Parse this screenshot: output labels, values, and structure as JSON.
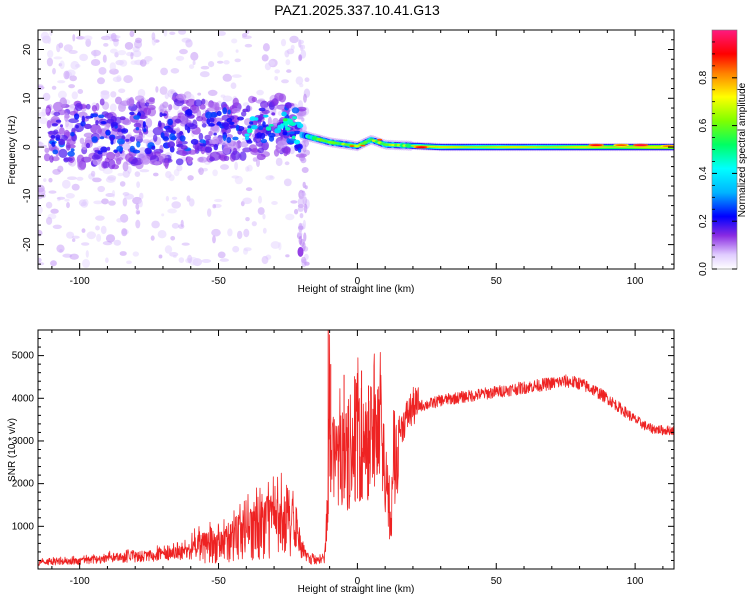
{
  "title": "PAZ1.2025.337.10.41.G13",
  "chart_data": [
    {
      "type": "heatmap",
      "name": "spectrogram",
      "xlabel": "Height of straight line (km)",
      "ylabel": "Frequency (Hz)",
      "xlim": [
        -115,
        114
      ],
      "ylim": [
        -25,
        24
      ],
      "xticks": [
        -100,
        -50,
        0,
        50,
        100
      ],
      "yticks": [
        -20,
        -10,
        0,
        10,
        20
      ],
      "xtick_labels": [
        "-100",
        "-50",
        "0",
        "50",
        "100"
      ],
      "ytick_labels": [
        "-20",
        "-10",
        "0",
        "10",
        "20"
      ],
      "colorbar": {
        "label": "Normalized spectral amplitude",
        "range": [
          0,
          1
        ],
        "ticks": [
          0.0,
          0.2,
          0.4,
          0.6,
          0.8
        ],
        "tick_labels": [
          "0.0",
          "0.2",
          "0.4",
          "0.6",
          "0.8"
        ],
        "stops": [
          {
            "v": 0.0,
            "color": "#ffffff"
          },
          {
            "v": 0.06,
            "color": "#e0ccff"
          },
          {
            "v": 0.14,
            "color": "#8a2be2"
          },
          {
            "v": 0.22,
            "color": "#0000ff"
          },
          {
            "v": 0.32,
            "color": "#00b4ff"
          },
          {
            "v": 0.42,
            "color": "#00ffff"
          },
          {
            "v": 0.52,
            "color": "#00ff64"
          },
          {
            "v": 0.62,
            "color": "#80ff00"
          },
          {
            "v": 0.72,
            "color": "#ffff00"
          },
          {
            "v": 0.82,
            "color": "#ff8000"
          },
          {
            "v": 0.9,
            "color": "#ff0000"
          },
          {
            "v": 1.0,
            "color": "#ff1a80"
          }
        ]
      },
      "ridge_frequency_hz": [
        {
          "x": -110,
          "f": 2.5
        },
        {
          "x": -80,
          "f": 3.0
        },
        {
          "x": -50,
          "f": 3.5
        },
        {
          "x": -30,
          "f": 4.0
        },
        {
          "x": -25,
          "f": 5.0
        },
        {
          "x": -20,
          "f": 2.5
        },
        {
          "x": -10,
          "f": 1.0
        },
        {
          "x": 0,
          "f": 0.2
        },
        {
          "x": 5,
          "f": 1.5
        },
        {
          "x": 10,
          "f": 0.5
        },
        {
          "x": 30,
          "f": 0.0
        },
        {
          "x": 100,
          "f": 0.0
        },
        {
          "x": 114,
          "f": 0.0
        }
      ],
      "hot_spots": [
        {
          "x": 23,
          "f": 0.0,
          "v": 0.9
        },
        {
          "x": 86,
          "f": 0.4,
          "v": 0.92
        },
        {
          "x": 95,
          "f": 0.4,
          "v": 0.85
        },
        {
          "x": 102,
          "f": 0.4,
          "v": 0.95
        },
        {
          "x": 112,
          "f": 0.2,
          "v": 0.82
        }
      ]
    },
    {
      "type": "line",
      "name": "snr",
      "xlabel": "Height of straight line (km)",
      "ylabel": "SNR (10 * v/v)",
      "xlim": [
        -115,
        114
      ],
      "ylim": [
        0,
        5600
      ],
      "xticks": [
        -100,
        -50,
        0,
        50,
        100
      ],
      "yticks": [
        1000,
        2000,
        3000,
        4000,
        5000
      ],
      "xtick_labels": [
        "-100",
        "-50",
        "0",
        "50",
        "100"
      ],
      "ytick_labels": [
        "1000",
        "2000",
        "3000",
        "4000",
        "5000"
      ],
      "color": "#ee2222",
      "series": [
        {
          "name": "SNR",
          "points": [
            [
              -115,
              150
            ],
            [
              -100,
              180
            ],
            [
              -90,
              240
            ],
            [
              -80,
              280
            ],
            [
              -70,
              330
            ],
            [
              -60,
              420
            ],
            [
              -50,
              560
            ],
            [
              -45,
              680
            ],
            [
              -40,
              780
            ],
            [
              -35,
              900
            ],
            [
              -30,
              1050
            ],
            [
              -25,
              1150
            ],
            [
              -22,
              850
            ],
            [
              -20,
              400
            ],
            [
              -18,
              250
            ],
            [
              -15,
              180
            ],
            [
              -12,
              200
            ],
            [
              -11,
              900
            ],
            [
              -10,
              3400
            ],
            [
              -9,
              2400
            ],
            [
              -8,
              2600
            ],
            [
              -7,
              2300
            ],
            [
              -5,
              2800
            ],
            [
              -3,
              2400
            ],
            [
              0,
              2900
            ],
            [
              3,
              2700
            ],
            [
              5,
              3000
            ],
            [
              8,
              3200
            ],
            [
              10,
              2400
            ],
            [
              11,
              1600
            ],
            [
              12,
              1000
            ],
            [
              13,
              2400
            ],
            [
              15,
              3200
            ],
            [
              18,
              3600
            ],
            [
              20,
              3800
            ],
            [
              25,
              3850
            ],
            [
              30,
              3950
            ],
            [
              40,
              4050
            ],
            [
              50,
              4150
            ],
            [
              60,
              4250
            ],
            [
              70,
              4350
            ],
            [
              75,
              4400
            ],
            [
              80,
              4350
            ],
            [
              85,
              4200
            ],
            [
              90,
              4000
            ],
            [
              95,
              3750
            ],
            [
              100,
              3500
            ],
            [
              105,
              3300
            ],
            [
              110,
              3250
            ],
            [
              114,
              3250
            ]
          ],
          "spikes": [
            {
              "x": -10.5,
              "y": 5600
            },
            {
              "x": -9.6,
              "y": 4800
            },
            {
              "x": -4.8,
              "y": 4550
            },
            {
              "x": 1.5,
              "y": 4650
            },
            {
              "x": 4.0,
              "y": 4300
            },
            {
              "x": 12.2,
              "y": 950
            }
          ]
        }
      ]
    }
  ]
}
